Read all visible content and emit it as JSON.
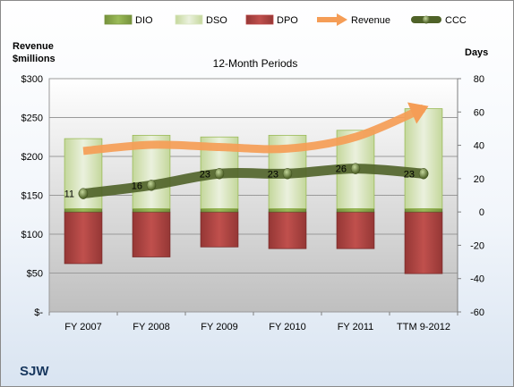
{
  "chart_data": {
    "type": "bar",
    "title": "12-Month Periods",
    "company": "SJW",
    "left_axis_label_line1": "Revenue",
    "left_axis_label_line2": "$millions",
    "right_axis_label": "Days",
    "categories": [
      "FY 2007",
      "FY 2008",
      "FY 2009",
      "FY 2010",
      "FY 2011",
      "TTM 9-2012"
    ],
    "left_ticks": [
      "$-",
      "$50",
      "$100",
      "$150",
      "$200",
      "$250",
      "$300"
    ],
    "right_ticks": [
      "-60",
      "-40",
      "-20",
      "0",
      "20",
      "40",
      "60",
      "80"
    ],
    "ylim_left": [
      0,
      300
    ],
    "ylim_right": [
      -60,
      80
    ],
    "legend_position": "top",
    "series": [
      {
        "name": "DIO",
        "axis": "right",
        "values": [
          2,
          2,
          2,
          2,
          2,
          2
        ],
        "color": "#77933c"
      },
      {
        "name": "DSO",
        "axis": "right",
        "values": [
          42,
          44,
          43,
          44,
          47,
          60
        ],
        "color": "#d7e4bc"
      },
      {
        "name": "DPO",
        "axis": "right",
        "values": [
          -31,
          -27,
          -21,
          -22,
          -22,
          -37
        ],
        "color": "#b84343"
      },
      {
        "name": "Revenue",
        "axis": "left",
        "values": [
          207,
          215,
          212,
          210,
          225,
          262
        ],
        "color": "#f59d56"
      },
      {
        "name": "CCC",
        "axis": "right",
        "values": [
          11,
          16,
          23,
          23,
          26,
          23
        ],
        "color": "#4f6228"
      }
    ],
    "ccc_labels": [
      "11",
      "16",
      "23",
      "23",
      "26",
      "23"
    ]
  }
}
